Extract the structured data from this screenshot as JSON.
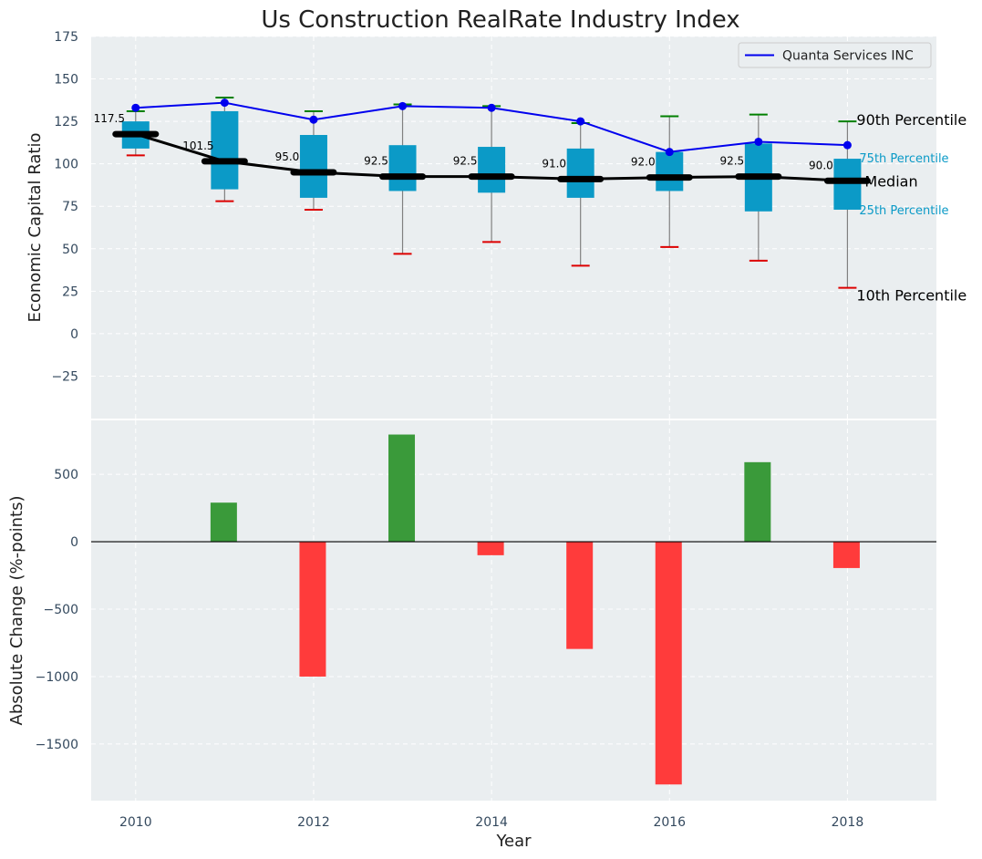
{
  "chart_data": [
    {
      "type": "box",
      "title": "Us Construction RealRate Industry Index",
      "xlabel": "",
      "ylabel": "Economic Capital Ratio",
      "ylim": [
        -50,
        175
      ],
      "yticks": [
        -25,
        0,
        25,
        50,
        75,
        100,
        125,
        150,
        175
      ],
      "ytick_labels": [
        "−25",
        "0",
        "25",
        "50",
        "75",
        "100",
        "125",
        "150",
        "175"
      ],
      "x": [
        2010,
        2011,
        2012,
        2013,
        2014,
        2015,
        2016,
        2017,
        2018
      ],
      "p10": [
        105,
        78,
        73,
        47,
        54,
        40,
        51,
        43,
        27
      ],
      "p25": [
        109,
        85,
        80,
        84,
        83,
        80,
        84,
        72,
        73
      ],
      "median": [
        117.5,
        101.5,
        95.0,
        92.5,
        92.5,
        91.0,
        92.0,
        92.5,
        90.0
      ],
      "median_labels": [
        "117.5",
        "101.5",
        "95.0",
        "92.5",
        "92.5",
        "91.0",
        "92.0",
        "92.5",
        "90.0"
      ],
      "p75": [
        125,
        131,
        117,
        111,
        110,
        109,
        107,
        112,
        103
      ],
      "p90": [
        131,
        139,
        131,
        135,
        134,
        124,
        128,
        129,
        125
      ],
      "series": [
        {
          "name": "Quanta Services INC",
          "values": [
            133,
            136,
            126,
            134,
            133,
            125,
            107,
            113,
            111
          ],
          "color": "#0000ee"
        }
      ],
      "annotations": {
        "p90": "90th Percentile",
        "p75": "75th Percentile",
        "median": "Median",
        "p25": "25th Percentile",
        "p10": "10th Percentile"
      },
      "colors": {
        "box": "#0b9ac7",
        "median": "#000000",
        "p90_cap": "#008000",
        "p10_cap": "#dd0000",
        "whisker": "#808080"
      },
      "grid": true,
      "legend": "top-right"
    },
    {
      "type": "bar",
      "xlabel": "Year",
      "ylabel": "Absolute Change (%-points)",
      "ylim": [
        -1920,
        900
      ],
      "yticks": [
        -1500,
        -1000,
        -500,
        0,
        500
      ],
      "ytick_labels": [
        "−1500",
        "−1000",
        "−500",
        "0",
        "500"
      ],
      "xlim": [
        2009.5,
        2019
      ],
      "xticks": [
        2010,
        2012,
        2014,
        2016,
        2018
      ],
      "xtick_labels": [
        "2010",
        "2012",
        "2014",
        "2016",
        "2018"
      ],
      "x": [
        2011,
        2012,
        2013,
        2014,
        2015,
        2016,
        2017,
        2018
      ],
      "values": [
        290,
        -1000,
        795,
        -100,
        -795,
        -1800,
        590,
        -195
      ],
      "colors": {
        "positive": "#3a9a3a",
        "negative": "#ff3b3b"
      },
      "grid": true
    }
  ]
}
